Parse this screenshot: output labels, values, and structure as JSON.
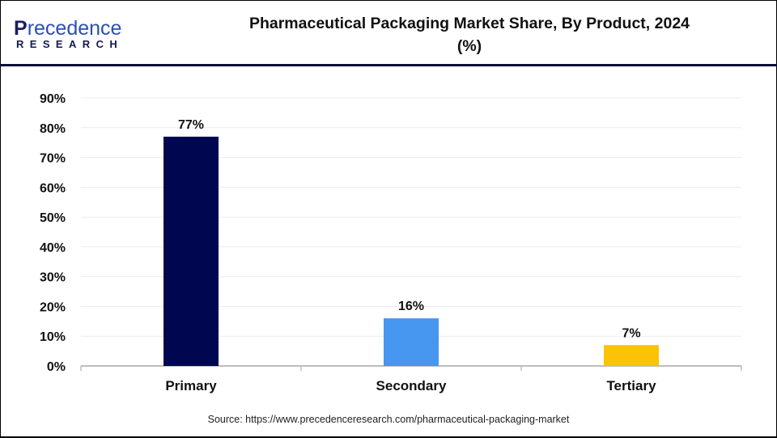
{
  "logo": {
    "line1_initial": "P",
    "line1_rest": "recedence",
    "line2": "RESEARCH"
  },
  "title": "Pharmaceutical Packaging Market Share, By Product, 2024",
  "title_line2": "(%)",
  "source": "Source: https://www.precedenceresearch.com/pharmaceutical-packaging-market",
  "chart_data": {
    "type": "bar",
    "title": "Pharmaceutical Packaging Market Share, By Product, 2024 (%)",
    "categories": [
      "Primary",
      "Secondary",
      "Tertiary"
    ],
    "values": [
      77,
      16,
      7
    ],
    "data_labels": [
      "77%",
      "16%",
      "7%"
    ],
    "colors": [
      "#000650",
      "#4796f0",
      "#fbc208"
    ],
    "ylim": [
      0,
      90
    ],
    "yticks": [
      "0%",
      "10%",
      "20%",
      "30%",
      "40%",
      "50%",
      "60%",
      "70%",
      "80%",
      "90%"
    ],
    "grid": true,
    "xlabel": "",
    "ylabel": ""
  }
}
